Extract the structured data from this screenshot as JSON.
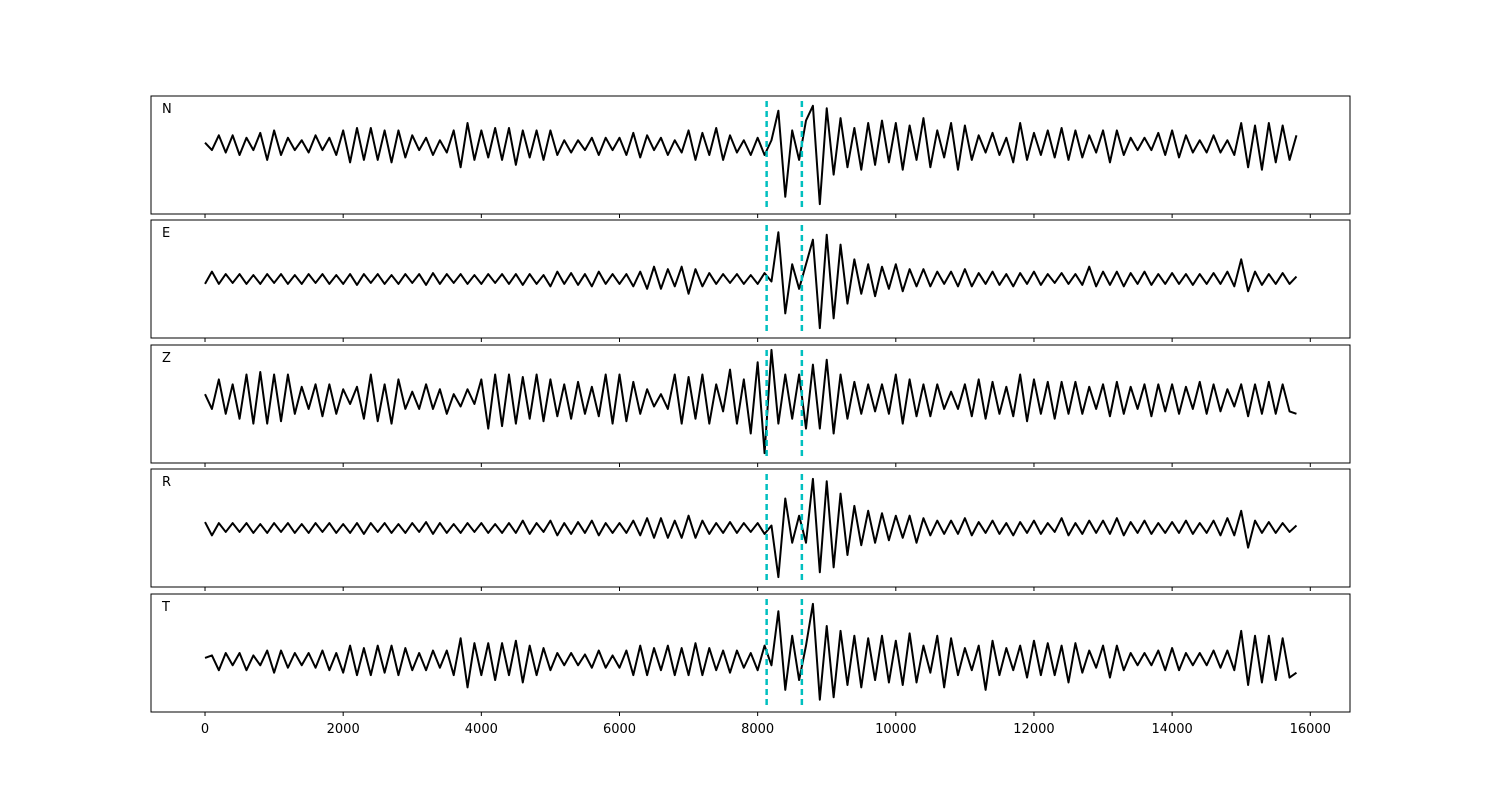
{
  "chart_data": {
    "type": "line",
    "x": [
      0,
      100,
      200,
      300,
      400,
      500,
      600,
      700,
      800,
      900,
      1000,
      1100,
      1200,
      1300,
      1400,
      1500,
      1600,
      1700,
      1800,
      1900,
      2000,
      2100,
      2200,
      2300,
      2400,
      2500,
      2600,
      2700,
      2800,
      2900,
      3000,
      3100,
      3200,
      3300,
      3400,
      3500,
      3600,
      3700,
      3800,
      3900,
      4000,
      4100,
      4200,
      4300,
      4400,
      4500,
      4600,
      4700,
      4800,
      4900,
      5000,
      5100,
      5200,
      5300,
      5400,
      5500,
      5600,
      5700,
      5800,
      5900,
      6000,
      6100,
      6200,
      6300,
      6400,
      6500,
      6600,
      6700,
      6800,
      6900,
      7000,
      7100,
      7200,
      7300,
      7400,
      7500,
      7600,
      7700,
      7800,
      7900,
      8000,
      8100,
      8200,
      8300,
      8400,
      8500,
      8600,
      8700,
      8800,
      8900,
      9000,
      9100,
      9200,
      9300,
      9400,
      9500,
      9600,
      9700,
      9800,
      9900,
      10000,
      10100,
      10200,
      10300,
      10400,
      10500,
      10600,
      10700,
      10800,
      10900,
      11000,
      11100,
      11200,
      11300,
      11400,
      11500,
      11600,
      11700,
      11800,
      11900,
      12000,
      12100,
      12200,
      12300,
      12400,
      12500,
      12600,
      12700,
      12800,
      12900,
      13000,
      13100,
      13200,
      13300,
      13400,
      13500,
      13600,
      13700,
      13800,
      13900,
      14000,
      14100,
      14200,
      14300,
      14400,
      14500,
      14600,
      14700,
      14800,
      14900,
      15000,
      15100,
      15200,
      15300,
      15400,
      15500,
      15600,
      15700,
      15800
    ],
    "xlim": [
      -782,
      16575
    ],
    "xticks": [
      0,
      2000,
      4000,
      6000,
      8000,
      10000,
      12000,
      14000,
      16000
    ],
    "vlines": [
      8130,
      8640
    ],
    "vline_color": "#00bfbf",
    "series": [
      {
        "name": "N",
        "color": "#000000",
        "ylim": [
          -1.4,
          1.0
        ],
        "values": [
          0.05,
          -0.1,
          0.2,
          -0.15,
          0.2,
          -0.2,
          0.15,
          -0.1,
          0.25,
          -0.3,
          0.3,
          -0.2,
          0.15,
          -0.1,
          0.1,
          -0.15,
          0.2,
          -0.1,
          0.15,
          -0.2,
          0.3,
          -0.35,
          0.35,
          -0.3,
          0.35,
          -0.3,
          0.3,
          -0.35,
          0.3,
          -0.25,
          0.2,
          -0.1,
          0.15,
          -0.2,
          0.1,
          -0.15,
          0.3,
          -0.45,
          0.45,
          -0.3,
          0.3,
          -0.25,
          0.35,
          -0.3,
          0.35,
          -0.4,
          0.3,
          -0.25,
          0.3,
          -0.3,
          0.3,
          -0.2,
          0.1,
          -0.15,
          0.1,
          -0.1,
          0.15,
          -0.2,
          0.15,
          -0.1,
          0.15,
          -0.2,
          0.25,
          -0.25,
          0.2,
          -0.1,
          0.15,
          -0.2,
          0.1,
          -0.15,
          0.3,
          -0.3,
          0.25,
          -0.2,
          0.35,
          -0.3,
          0.2,
          -0.15,
          0.1,
          -0.2,
          0.15,
          -0.2,
          0.1,
          0.7,
          -1.05,
          0.3,
          -0.3,
          0.5,
          0.8,
          -1.2,
          0.75,
          -0.6,
          0.55,
          -0.45,
          0.35,
          -0.5,
          0.45,
          -0.4,
          0.5,
          -0.35,
          0.45,
          -0.5,
          0.4,
          -0.3,
          0.55,
          -0.45,
          0.3,
          -0.25,
          0.45,
          -0.5,
          0.4,
          -0.3,
          0.2,
          -0.15,
          0.25,
          -0.2,
          0.15,
          -0.35,
          0.45,
          -0.3,
          0.25,
          -0.2,
          0.3,
          -0.25,
          0.35,
          -0.3,
          0.3,
          -0.25,
          0.2,
          -0.15,
          0.3,
          -0.35,
          0.3,
          -0.2,
          0.15,
          -0.1,
          0.15,
          -0.1,
          0.25,
          -0.2,
          0.3,
          -0.25,
          0.2,
          -0.15,
          0.1,
          -0.15,
          0.2,
          -0.15,
          0.1,
          -0.2,
          0.45,
          -0.45,
          0.4,
          -0.5,
          0.45,
          -0.35,
          0.4,
          -0.3,
          0.2
        ]
      },
      {
        "name": "E",
        "color": "#000000",
        "ylim": [
          -1.2,
          1.2
        ],
        "values": [
          -0.1,
          0.15,
          -0.1,
          0.1,
          -0.08,
          0.1,
          -0.1,
          0.08,
          -0.1,
          0.1,
          -0.08,
          0.1,
          -0.1,
          0.08,
          -0.1,
          0.1,
          -0.08,
          0.1,
          -0.1,
          0.08,
          -0.1,
          0.1,
          -0.12,
          0.1,
          -0.08,
          0.1,
          -0.1,
          0.08,
          -0.1,
          0.1,
          -0.08,
          0.1,
          -0.12,
          0.12,
          -0.1,
          0.1,
          -0.08,
          0.1,
          -0.1,
          0.08,
          -0.1,
          0.1,
          -0.08,
          0.1,
          -0.1,
          0.1,
          -0.12,
          0.1,
          -0.1,
          0.08,
          -0.15,
          0.15,
          -0.1,
          0.12,
          -0.12,
          0.1,
          -0.15,
          0.15,
          -0.1,
          0.1,
          -0.1,
          0.1,
          -0.15,
          0.15,
          -0.2,
          0.25,
          -0.2,
          0.2,
          -0.15,
          0.25,
          -0.3,
          0.2,
          -0.15,
          0.12,
          -0.1,
          0.1,
          -0.08,
          0.1,
          -0.1,
          0.08,
          -0.1,
          0.12,
          -0.05,
          0.95,
          -0.7,
          0.3,
          -0.2,
          0.3,
          0.8,
          -1.0,
          0.9,
          -0.8,
          0.7,
          -0.5,
          0.4,
          -0.3,
          0.3,
          -0.35,
          0.25,
          -0.2,
          0.3,
          -0.25,
          0.2,
          -0.15,
          0.2,
          -0.15,
          0.15,
          -0.1,
          0.15,
          -0.15,
          0.2,
          -0.15,
          0.12,
          -0.1,
          0.15,
          -0.12,
          0.1,
          -0.15,
          0.12,
          -0.1,
          0.15,
          -0.12,
          0.1,
          -0.08,
          0.12,
          -0.1,
          0.1,
          -0.12,
          0.25,
          -0.15,
          0.15,
          -0.12,
          0.15,
          -0.15,
          0.12,
          -0.1,
          0.15,
          -0.12,
          0.1,
          -0.1,
          0.12,
          -0.1,
          0.1,
          -0.12,
          0.1,
          -0.1,
          0.12,
          -0.1,
          0.15,
          -0.15,
          0.4,
          -0.25,
          0.15,
          -0.12,
          0.1,
          -0.1,
          0.12,
          -0.1,
          0.05
        ]
      },
      {
        "name": "Z",
        "color": "#000000",
        "ylim": [
          -1.3,
          1.1
        ],
        "values": [
          0.1,
          -0.2,
          0.4,
          -0.3,
          0.3,
          -0.4,
          0.5,
          -0.5,
          0.55,
          -0.5,
          0.5,
          -0.45,
          0.5,
          -0.3,
          0.25,
          -0.2,
          0.3,
          -0.35,
          0.3,
          -0.3,
          0.2,
          -0.1,
          0.25,
          -0.4,
          0.5,
          -0.45,
          0.3,
          -0.5,
          0.4,
          -0.2,
          0.15,
          -0.2,
          0.3,
          -0.2,
          0.2,
          -0.3,
          0.1,
          -0.15,
          0.2,
          -0.1,
          0.4,
          -0.6,
          0.5,
          -0.55,
          0.5,
          -0.5,
          0.45,
          -0.4,
          0.5,
          -0.45,
          0.4,
          -0.35,
          0.3,
          -0.4,
          0.35,
          -0.3,
          0.25,
          -0.35,
          0.5,
          -0.5,
          0.5,
          -0.45,
          0.35,
          -0.3,
          0.2,
          -0.15,
          0.1,
          -0.2,
          0.5,
          -0.5,
          0.45,
          -0.4,
          0.5,
          -0.5,
          0.3,
          -0.25,
          0.6,
          -0.5,
          0.4,
          -0.7,
          0.75,
          -1.1,
          1.0,
          -0.5,
          0.5,
          -0.4,
          0.5,
          -0.6,
          0.7,
          -0.6,
          0.8,
          -0.7,
          0.5,
          -0.4,
          0.35,
          -0.3,
          0.3,
          -0.25,
          0.3,
          -0.3,
          0.5,
          -0.5,
          0.4,
          -0.35,
          0.3,
          -0.35,
          0.3,
          -0.2,
          0.15,
          -0.2,
          0.3,
          -0.35,
          0.4,
          -0.4,
          0.35,
          -0.3,
          0.25,
          -0.35,
          0.5,
          -0.45,
          0.4,
          -0.3,
          0.35,
          -0.4,
          0.35,
          -0.3,
          0.35,
          -0.3,
          0.25,
          -0.2,
          0.3,
          -0.35,
          0.35,
          -0.3,
          0.25,
          -0.2,
          0.3,
          -0.35,
          0.3,
          -0.25,
          0.3,
          -0.3,
          0.25,
          -0.2,
          0.35,
          -0.3,
          0.3,
          -0.25,
          0.2,
          -0.15,
          0.3,
          -0.35,
          0.3,
          -0.3,
          0.35,
          -0.3,
          0.3,
          -0.25,
          -0.3
        ]
      },
      {
        "name": "R",
        "color": "#000000",
        "ylim": [
          -1.2,
          1.2
        ],
        "values": [
          0.12,
          -0.15,
          0.1,
          -0.08,
          0.1,
          -0.08,
          0.1,
          -0.1,
          0.08,
          -0.1,
          0.1,
          -0.08,
          0.1,
          -0.1,
          0.08,
          -0.1,
          0.1,
          -0.08,
          0.1,
          -0.1,
          0.08,
          -0.1,
          0.1,
          -0.12,
          0.1,
          -0.08,
          0.1,
          -0.1,
          0.08,
          -0.1,
          0.1,
          -0.08,
          0.12,
          -0.12,
          0.1,
          -0.1,
          0.08,
          -0.1,
          0.1,
          -0.08,
          0.1,
          -0.1,
          0.08,
          -0.1,
          0.1,
          -0.1,
          0.15,
          -0.12,
          0.1,
          -0.08,
          0.15,
          -0.15,
          0.1,
          -0.12,
          0.12,
          -0.1,
          0.15,
          -0.15,
          0.1,
          -0.1,
          0.1,
          -0.1,
          0.15,
          -0.15,
          0.2,
          -0.2,
          0.2,
          -0.2,
          0.15,
          -0.2,
          0.25,
          -0.2,
          0.15,
          -0.12,
          0.1,
          -0.1,
          0.12,
          -0.1,
          0.1,
          -0.08,
          0.1,
          -0.12,
          0.05,
          -1.0,
          0.6,
          -0.3,
          0.25,
          -0.3,
          1.0,
          -0.9,
          0.95,
          -0.8,
          0.7,
          -0.55,
          0.45,
          -0.35,
          0.35,
          -0.3,
          0.3,
          -0.25,
          0.25,
          -0.2,
          0.25,
          -0.3,
          0.2,
          -0.15,
          0.15,
          -0.12,
          0.15,
          -0.12,
          0.2,
          -0.15,
          0.12,
          -0.1,
          0.15,
          -0.12,
          0.1,
          -0.15,
          0.12,
          -0.1,
          0.15,
          -0.12,
          0.1,
          -0.08,
          0.2,
          -0.15,
          0.1,
          -0.12,
          0.15,
          -0.1,
          0.15,
          -0.12,
          0.2,
          -0.15,
          0.12,
          -0.1,
          0.15,
          -0.12,
          0.1,
          -0.1,
          0.12,
          -0.1,
          0.15,
          -0.12,
          0.1,
          -0.1,
          0.15,
          -0.15,
          0.2,
          -0.15,
          0.35,
          -0.4,
          0.15,
          -0.1,
          0.12,
          -0.1,
          0.1,
          -0.08,
          0.05
        ]
      },
      {
        "name": "T",
        "color": "#000000",
        "ylim": [
          -1.05,
          1.35
        ],
        "values": [
          0.05,
          0.1,
          -0.2,
          0.15,
          -0.1,
          0.15,
          -0.2,
          0.1,
          -0.1,
          0.2,
          -0.25,
          0.2,
          -0.15,
          0.15,
          -0.1,
          0.15,
          -0.15,
          0.2,
          -0.2,
          0.15,
          -0.25,
          0.3,
          -0.3,
          0.25,
          -0.3,
          0.3,
          -0.25,
          0.3,
          -0.3,
          0.25,
          -0.2,
          0.15,
          -0.2,
          0.2,
          -0.15,
          0.2,
          -0.3,
          0.45,
          -0.55,
          0.35,
          -0.3,
          0.35,
          -0.4,
          0.35,
          -0.3,
          0.4,
          -0.45,
          0.3,
          -0.3,
          0.25,
          -0.2,
          0.15,
          -0.1,
          0.15,
          -0.1,
          0.12,
          -0.15,
          0.2,
          -0.15,
          0.1,
          -0.15,
          0.2,
          -0.3,
          0.3,
          -0.3,
          0.25,
          -0.2,
          0.3,
          -0.3,
          0.25,
          -0.3,
          0.35,
          -0.3,
          0.25,
          -0.2,
          0.2,
          -0.25,
          0.2,
          -0.15,
          0.15,
          -0.2,
          0.3,
          -0.1,
          1.0,
          -0.6,
          0.5,
          -0.4,
          0.3,
          1.15,
          -0.8,
          0.7,
          -0.75,
          0.6,
          -0.5,
          0.5,
          -0.55,
          0.45,
          -0.4,
          0.5,
          -0.45,
          0.4,
          -0.5,
          0.55,
          -0.45,
          0.3,
          -0.25,
          0.5,
          -0.55,
          0.45,
          -0.3,
          0.25,
          -0.2,
          0.3,
          -0.6,
          0.4,
          -0.3,
          0.25,
          -0.2,
          0.3,
          -0.35,
          0.4,
          -0.3,
          0.35,
          -0.3,
          0.3,
          -0.45,
          0.35,
          -0.25,
          0.2,
          -0.15,
          0.3,
          -0.35,
          0.3,
          -0.2,
          0.15,
          -0.1,
          0.15,
          -0.1,
          0.2,
          -0.2,
          0.25,
          -0.2,
          0.15,
          -0.1,
          0.15,
          -0.1,
          0.2,
          -0.15,
          0.2,
          -0.2,
          0.6,
          -0.5,
          0.5,
          -0.45,
          0.5,
          -0.4,
          0.45,
          -0.35,
          -0.25
        ]
      }
    ]
  }
}
